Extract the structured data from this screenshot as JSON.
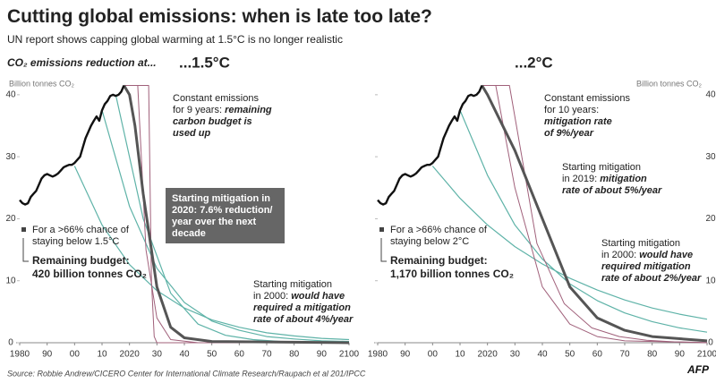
{
  "title": "Cutting global emissions: when is late too late?",
  "subtitle": "UN report shows capping global warming at 1.5°C is no longer realistic",
  "section_label": "CO₂ emissions reduction at...",
  "source": "Source: Robbie Andrew/CICERO Center for International Climate Research/Raupach et al 201/IPCC",
  "credit": "AFP",
  "chart_data": [
    {
      "type": "line",
      "heading": "...1.5°C",
      "y_label": "Billion tonnes CO₂",
      "xlim": [
        1980,
        2100
      ],
      "ylim": [
        0,
        42
      ],
      "xticks": [
        {
          "value": 1980,
          "label": "1980"
        },
        {
          "value": 1990,
          "label": "90"
        },
        {
          "value": 2000,
          "label": "00"
        },
        {
          "value": 2010,
          "label": "10"
        },
        {
          "value": 2020,
          "label": "2020"
        },
        {
          "value": 2030,
          "label": "30"
        },
        {
          "value": 2040,
          "label": "40"
        },
        {
          "value": 2050,
          "label": "50"
        },
        {
          "value": 2060,
          "label": "60"
        },
        {
          "value": 2070,
          "label": "70"
        },
        {
          "value": 2080,
          "label": "80"
        },
        {
          "value": 2090,
          "label": "90"
        },
        {
          "value": 2100,
          "label": "2100"
        }
      ],
      "yticks": [
        0,
        10,
        20,
        30,
        40
      ],
      "series": [
        {
          "color": "#5fb3a8",
          "width": 1.2,
          "x": [
            2000,
            2010,
            2020,
            2030,
            2040,
            2050,
            2060,
            2070,
            2080,
            2090,
            2100
          ],
          "values": [
            28.5,
            19,
            12.6,
            8.4,
            5.6,
            3.7,
            2.5,
            1.6,
            1.1,
            0.7,
            0.5
          ]
        },
        {
          "color": "#5fb3a8",
          "width": 1.2,
          "x": [
            2010,
            2020,
            2030,
            2040,
            2050,
            2060,
            2070,
            2080,
            2090,
            2100
          ],
          "values": [
            37.5,
            22,
            12,
            6.5,
            3.5,
            2,
            1,
            0.6,
            0.3,
            0.2
          ]
        },
        {
          "color": "#5fb3a8",
          "width": 1.2,
          "x": [
            2015,
            2025,
            2035,
            2045,
            2055,
            2065,
            2075,
            2085,
            2100
          ],
          "values": [
            40,
            20,
            8,
            3,
            1.2,
            0.5,
            0.2,
            0.1,
            0
          ]
        },
        {
          "color": "#a0607a",
          "width": 1,
          "x": [
            2018,
            2023,
            2026,
            2030,
            2035,
            2045,
            2100
          ],
          "values": [
            41.5,
            41.5,
            15,
            4,
            0.5,
            0,
            0
          ]
        },
        {
          "color": "#a0607a",
          "width": 1,
          "x": [
            2018,
            2027,
            2028,
            2029,
            2030,
            2100
          ],
          "values": [
            41.5,
            41.5,
            10,
            1,
            0,
            0
          ]
        },
        {
          "color": "#555555",
          "width": 3,
          "x": [
            2018,
            2020,
            2022,
            2025,
            2028,
            2030,
            2035,
            2040,
            2050,
            2100
          ],
          "values": [
            41.5,
            40,
            35,
            24,
            15,
            9,
            2.5,
            0.8,
            0.2,
            0
          ]
        },
        {
          "color": "#111111",
          "width": 2.4,
          "x": [
            1980,
            1981,
            1982,
            1983,
            1984,
            1985,
            1986,
            1987,
            1988,
            1989,
            1990,
            1991,
            1992,
            1993,
            1994,
            1995,
            1996,
            1997,
            1998,
            1999,
            2000,
            2001,
            2002,
            2003,
            2004,
            2005,
            2006,
            2007,
            2008,
            2009,
            2010,
            2011,
            2012,
            2013,
            2014,
            2015,
            2016,
            2017,
            2018
          ],
          "values": [
            23,
            22.5,
            22.3,
            22.5,
            23.5,
            24,
            24.5,
            25.5,
            26.5,
            27,
            27.2,
            27,
            26.8,
            27,
            27.3,
            27.8,
            28.3,
            28.5,
            28.7,
            28.7,
            29,
            29.5,
            30,
            31.5,
            33,
            34,
            35,
            35.8,
            36.5,
            35.8,
            37.5,
            38.5,
            39,
            39.8,
            40,
            39.8,
            40,
            40.5,
            41.5
          ]
        }
      ],
      "annotations": [
        {
          "lines": [
            [
              "Constant emissions"
            ],
            [
              "for 9 years: ",
              {
                "em": "remaining"
              }
            ],
            [
              {
                "em": "carbon budget is"
              }
            ],
            [
              {
                "em": "used up"
              }
            ]
          ]
        },
        {
          "lines": [
            [
              "Starting mitigation in"
            ],
            [
              "2020: 7.6% reduction/"
            ],
            [
              "year over the next"
            ],
            [
              "decade"
            ]
          ]
        },
        {
          "lines": [
            [
              "For a >66% chance of"
            ],
            [
              "staying below 1.5°C"
            ]
          ]
        },
        {
          "lines": [
            [
              "Remaining budget:"
            ],
            [
              "420 billion tonnes CO₂"
            ]
          ]
        },
        {
          "lines": [
            [
              "Starting mitigation"
            ],
            [
              "in 2000: ",
              {
                "em": "would have"
              }
            ],
            [
              {
                "em": "required a mitigation"
              }
            ],
            [
              {
                "em": "rate of about 4%/year"
              }
            ]
          ]
        }
      ]
    },
    {
      "type": "line",
      "heading": "...2°C",
      "y_label": "Billion tonnes CO₂",
      "xlim": [
        1980,
        2100
      ],
      "ylim": [
        0,
        42
      ],
      "xticks": [
        {
          "value": 1980,
          "label": "1980"
        },
        {
          "value": 1990,
          "label": "90"
        },
        {
          "value": 2000,
          "label": "00"
        },
        {
          "value": 2010,
          "label": "10"
        },
        {
          "value": 2020,
          "label": "2020"
        },
        {
          "value": 2030,
          "label": "30"
        },
        {
          "value": 2040,
          "label": "40"
        },
        {
          "value": 2050,
          "label": "50"
        },
        {
          "value": 2060,
          "label": "60"
        },
        {
          "value": 2070,
          "label": "70"
        },
        {
          "value": 2080,
          "label": "80"
        },
        {
          "value": 2090,
          "label": "90"
        },
        {
          "value": 2100,
          "label": "2100"
        }
      ],
      "yticks": [
        0,
        10,
        20,
        30,
        40
      ],
      "series": [
        {
          "color": "#5fb3a8",
          "width": 1.2,
          "x": [
            2000,
            2010,
            2020,
            2030,
            2040,
            2050,
            2060,
            2070,
            2080,
            2090,
            2100
          ],
          "values": [
            28.5,
            23.3,
            19,
            15.5,
            12.7,
            10.4,
            8.5,
            6.9,
            5.6,
            4.6,
            3.8
          ]
        },
        {
          "color": "#5fb3a8",
          "width": 1.2,
          "x": [
            2010,
            2020,
            2030,
            2040,
            2050,
            2060,
            2070,
            2080,
            2090,
            2100
          ],
          "values": [
            37.5,
            27,
            19,
            13.5,
            9.5,
            6.8,
            4.8,
            3.4,
            2.4,
            1.7
          ]
        },
        {
          "color": "#a0607a",
          "width": 1,
          "x": [
            2018,
            2023,
            2030,
            2040,
            2050,
            2060,
            2070,
            2100
          ],
          "values": [
            41.5,
            41.5,
            25,
            9,
            3,
            1,
            0.3,
            0
          ]
        },
        {
          "color": "#a0607a",
          "width": 1,
          "x": [
            2018,
            2028,
            2038,
            2048,
            2058,
            2068,
            2078,
            2088,
            2100
          ],
          "values": [
            41.5,
            41.5,
            16,
            6.3,
            2.4,
            1,
            0.4,
            0.15,
            0.05
          ]
        },
        {
          "color": "#555555",
          "width": 3,
          "x": [
            2018,
            2020,
            2030,
            2040,
            2050,
            2060,
            2070,
            2080,
            2100
          ],
          "values": [
            41.5,
            40,
            31,
            20,
            9,
            4,
            2,
            1,
            0.3
          ]
        },
        {
          "color": "#111111",
          "width": 2.4,
          "x": [
            1980,
            1981,
            1982,
            1983,
            1984,
            1985,
            1986,
            1987,
            1988,
            1989,
            1990,
            1991,
            1992,
            1993,
            1994,
            1995,
            1996,
            1997,
            1998,
            1999,
            2000,
            2001,
            2002,
            2003,
            2004,
            2005,
            2006,
            2007,
            2008,
            2009,
            2010,
            2011,
            2012,
            2013,
            2014,
            2015,
            2016,
            2017,
            2018
          ],
          "values": [
            23,
            22.5,
            22.3,
            22.5,
            23.5,
            24,
            24.5,
            25.5,
            26.5,
            27,
            27.2,
            27,
            26.8,
            27,
            27.3,
            27.8,
            28.3,
            28.5,
            28.7,
            28.7,
            29,
            29.5,
            30,
            31.5,
            33,
            34,
            35,
            35.8,
            36.5,
            35.8,
            37.5,
            38.5,
            39,
            39.8,
            40,
            39.8,
            40,
            40.5,
            41.5
          ]
        }
      ],
      "annotations": [
        {
          "lines": [
            [
              "Constant emissions"
            ],
            [
              "for 10 years:"
            ],
            [
              {
                "em": "mitigation rate"
              }
            ],
            [
              {
                "em": "of 9%/year"
              }
            ]
          ]
        },
        {
          "lines": [
            [
              "Starting mitigation"
            ],
            [
              "in 2019: ",
              {
                "em": "mitigation"
              }
            ],
            [
              {
                "em": "rate of about 5%/year"
              }
            ]
          ]
        },
        {
          "lines": [
            [
              "For a >66% chance of"
            ],
            [
              "staying below 2°C"
            ]
          ]
        },
        {
          "lines": [
            [
              "Remaining budget:"
            ],
            [
              "1,170 billion tonnes CO₂"
            ]
          ]
        },
        {
          "lines": [
            [
              "Starting mitigation"
            ],
            [
              "in 2000: ",
              {
                "em": "would have"
              }
            ],
            [
              {
                "em": "required mitigation"
              }
            ],
            [
              {
                "em": "rate of about 2%/year"
              }
            ]
          ]
        }
      ]
    }
  ]
}
